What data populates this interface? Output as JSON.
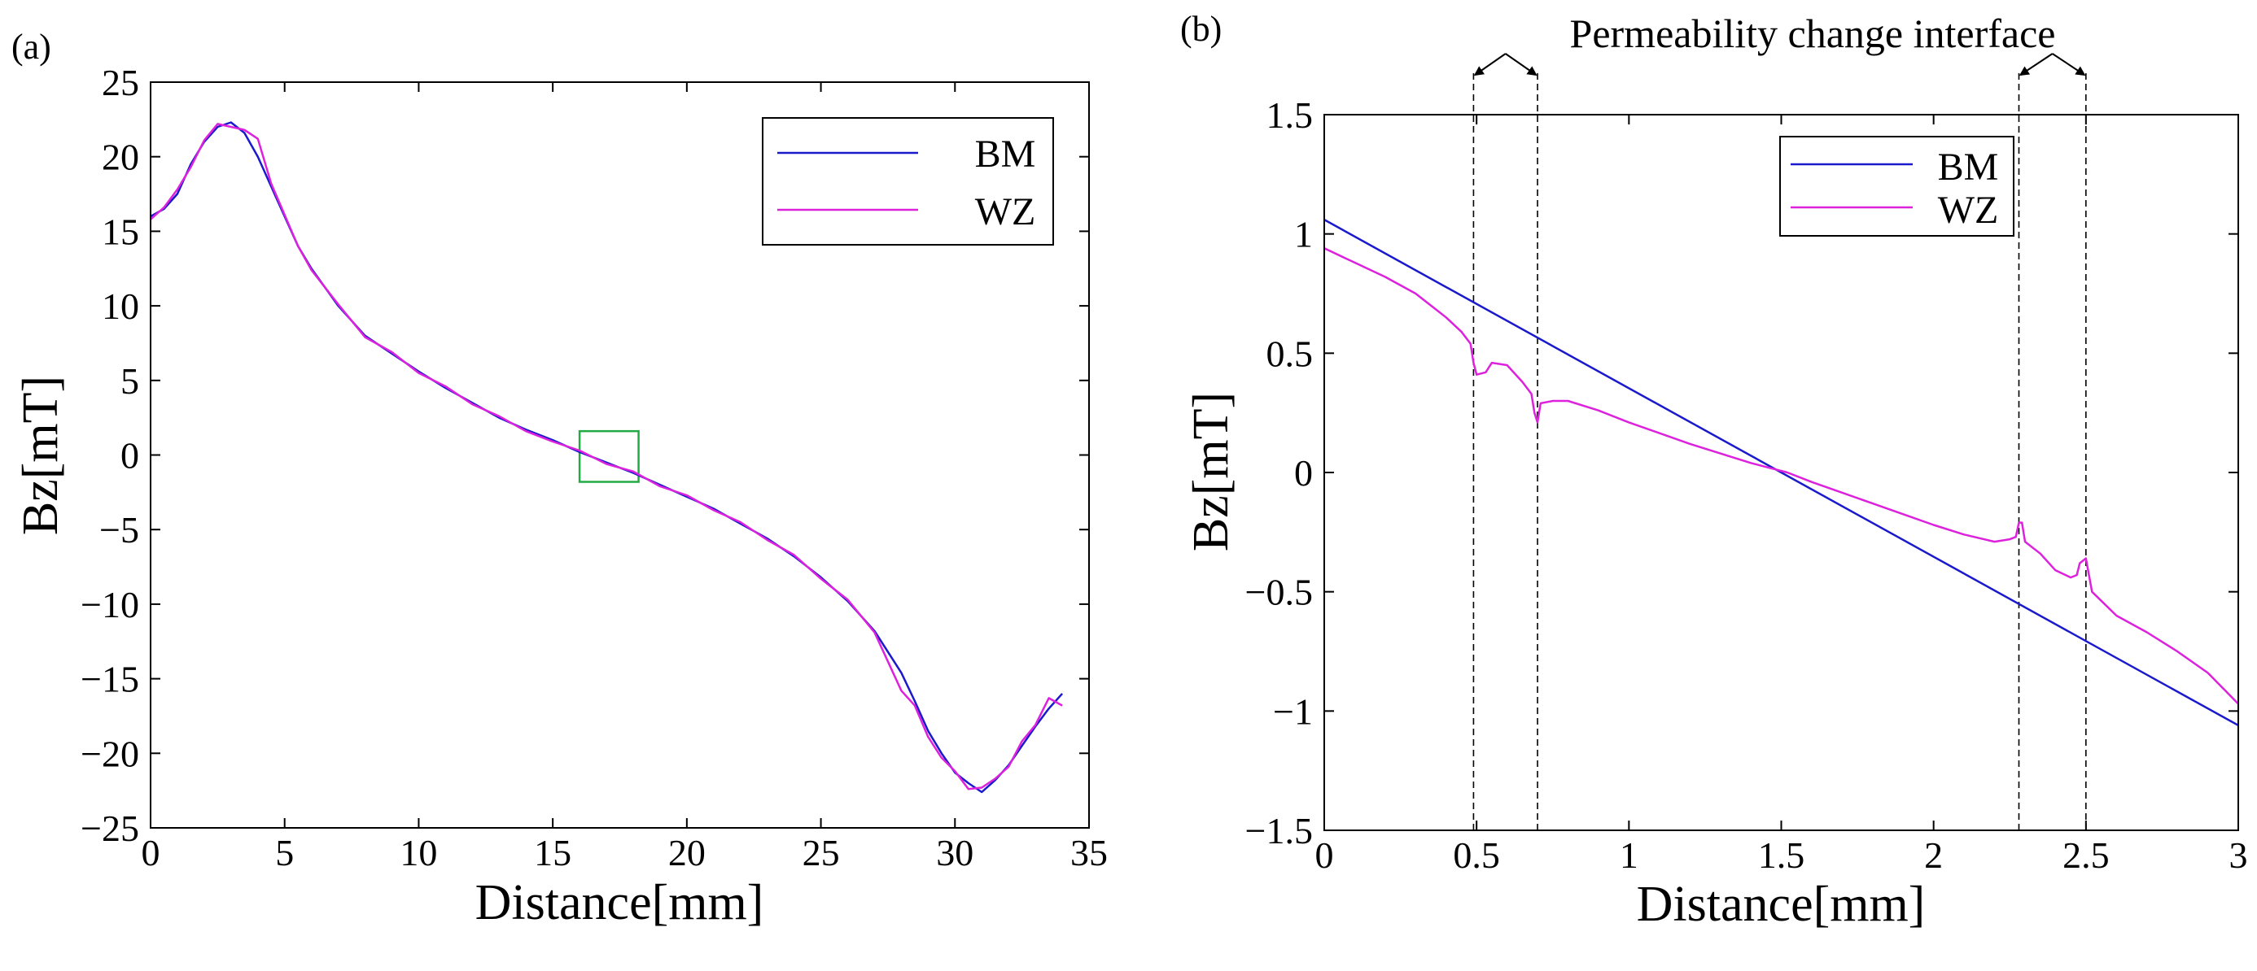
{
  "chart_data": [
    {
      "type": "line",
      "panel_label": "(a)",
      "xlabel": "Distance[mm]",
      "ylabel": "Bz[mT]",
      "xlim": [
        0,
        35
      ],
      "ylim": [
        -25,
        25
      ],
      "xticks": [
        0,
        5,
        10,
        15,
        20,
        25,
        30,
        35
      ],
      "yticks": [
        25,
        20,
        15,
        10,
        5,
        0,
        -5,
        -10,
        -15,
        -20,
        -25
      ],
      "ytick_labels": [
        "25",
        "20",
        "15",
        "10",
        "5",
        "0",
        "−5",
        "−10",
        "−15",
        "−20",
        "−25"
      ],
      "legend_location": "top-right",
      "highlight_box": {
        "x": [
          16,
          18.2
        ],
        "y": [
          -1.8,
          1.6
        ],
        "color": "#22aa44"
      },
      "series": [
        {
          "name": "BM",
          "color": "#1a1acc",
          "x": [
            0,
            0.5,
            1,
            1.5,
            2,
            2.5,
            3,
            3.5,
            4,
            4.5,
            5,
            5.5,
            6,
            7,
            8,
            9,
            10,
            11,
            12,
            13,
            14,
            15,
            16,
            17,
            18,
            19,
            20,
            21,
            22,
            23,
            24,
            25,
            26,
            27,
            28,
            28.5,
            29,
            29.5,
            30,
            30.5,
            31,
            31.5,
            32,
            32.5,
            33,
            33.5,
            34
          ],
          "values": [
            16,
            16.5,
            17.5,
            19.5,
            21,
            22,
            22.3,
            21.6,
            20,
            18,
            16,
            14,
            12.5,
            10,
            8,
            6.8,
            5.6,
            4.5,
            3.5,
            2.5,
            1.7,
            1,
            0.2,
            -0.5,
            -1.2,
            -2,
            -2.8,
            -3.6,
            -4.6,
            -5.6,
            -6.8,
            -8.2,
            -9.8,
            -11.8,
            -14.6,
            -16.5,
            -18.5,
            -20,
            -21.3,
            -22,
            -22.6,
            -21.8,
            -20.8,
            -19.5,
            -18.2,
            -17,
            -16
          ]
        },
        {
          "name": "WZ",
          "color": "#dd22dd",
          "x": [
            0,
            0.5,
            1,
            1.5,
            2,
            2.5,
            3,
            3.5,
            4,
            4.5,
            5,
            5.5,
            6,
            7,
            8,
            9,
            10,
            11,
            12,
            13,
            14,
            15,
            16,
            17,
            18,
            19,
            20,
            21,
            22,
            23,
            24,
            25,
            26,
            27,
            28,
            28.5,
            29,
            29.5,
            30,
            30.5,
            31,
            31.5,
            32,
            32.5,
            33,
            33.5,
            34
          ],
          "values": [
            15.8,
            16.6,
            17.8,
            19.3,
            21.1,
            22.2,
            22,
            21.8,
            21.2,
            18.2,
            16.1,
            14,
            12.4,
            10.1,
            7.9,
            6.9,
            5.5,
            4.6,
            3.4,
            2.6,
            1.6,
            0.9,
            0.3,
            -0.6,
            -1.1,
            -2.1,
            -2.7,
            -3.7,
            -4.5,
            -5.7,
            -6.7,
            -8.3,
            -9.7,
            -11.9,
            -15.8,
            -16.8,
            -18.9,
            -20.3,
            -21.2,
            -22.4,
            -22.3,
            -21.7,
            -20.9,
            -19.2,
            -18.1,
            -16.3,
            -16.8
          ]
        }
      ]
    },
    {
      "type": "line",
      "panel_label": "(b)",
      "xlabel": "Distance[mm]",
      "ylabel": "Bz[mT]",
      "xlim": [
        0,
        3
      ],
      "ylim": [
        -1.5,
        1.5
      ],
      "xticks": [
        0,
        0.5,
        1,
        1.5,
        2,
        2.5,
        3
      ],
      "xtick_labels": [
        "0",
        "0.5",
        "1",
        "1.5",
        "2",
        "2.5",
        "3"
      ],
      "yticks": [
        1.5,
        1,
        0.5,
        0,
        -0.5,
        -1,
        -1.5
      ],
      "ytick_labels": [
        "1.5",
        "1",
        "0.5",
        "0",
        "−0.5",
        "−1",
        "−1.5"
      ],
      "legend_location": "top-right",
      "annotation": "Permeability change interface",
      "interface_lines": [
        0.49,
        0.7,
        2.28,
        2.5
      ],
      "series": [
        {
          "name": "BM",
          "color": "#1a1acc",
          "x": [
            0,
            3
          ],
          "values": [
            1.06,
            -1.06
          ]
        },
        {
          "name": "WZ",
          "color": "#dd22dd",
          "x": [
            0,
            0.1,
            0.2,
            0.3,
            0.4,
            0.45,
            0.48,
            0.49,
            0.5,
            0.53,
            0.55,
            0.6,
            0.65,
            0.68,
            0.69,
            0.7,
            0.71,
            0.75,
            0.8,
            0.9,
            1.0,
            1.2,
            1.4,
            1.52,
            1.6,
            1.8,
            2.0,
            2.1,
            2.2,
            2.25,
            2.27,
            2.28,
            2.29,
            2.3,
            2.35,
            2.4,
            2.45,
            2.47,
            2.48,
            2.5,
            2.52,
            2.6,
            2.7,
            2.8,
            2.9,
            3.0
          ],
          "values": [
            0.94,
            0.88,
            0.82,
            0.75,
            0.65,
            0.59,
            0.54,
            0.46,
            0.41,
            0.42,
            0.46,
            0.45,
            0.38,
            0.33,
            0.25,
            0.21,
            0.29,
            0.3,
            0.3,
            0.26,
            0.21,
            0.12,
            0.04,
            0.0,
            -0.04,
            -0.13,
            -0.22,
            -0.26,
            -0.29,
            -0.28,
            -0.27,
            -0.21,
            -0.21,
            -0.29,
            -0.34,
            -0.41,
            -0.44,
            -0.43,
            -0.38,
            -0.36,
            -0.5,
            -0.6,
            -0.67,
            -0.75,
            -0.84,
            -0.97
          ]
        }
      ]
    }
  ]
}
